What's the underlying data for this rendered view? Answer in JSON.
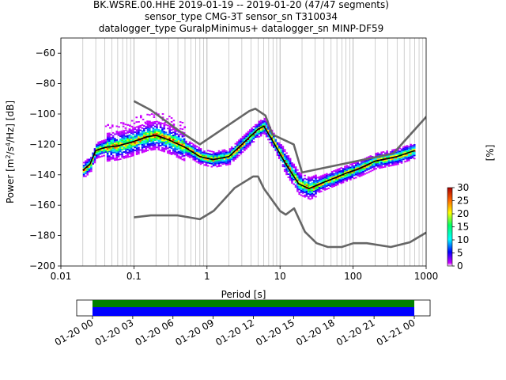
{
  "title_lines": [
    "BK.WSRE.00.HHE   2019-01-19 -- 2019-01-20  (47/47 segments)",
    "sensor_type CMG-3T sensor_sn T310034",
    "datalogger_type GuralpMinimus+ datalogger_sn MINP-DF59"
  ],
  "chart_data": {
    "type": "heatmap",
    "title": "BK.WSRE.00.HHE   2019-01-19 -- 2019-01-20  (47/47 segments)",
    "xlabel": "Period [s]",
    "ylabel": "Power [m$^2$/s$^4$/Hz] [dB]",
    "xscale": "log",
    "xlim": [
      0.01,
      1000
    ],
    "ylim": [
      -200,
      -50
    ],
    "x_ticks": [
      0.01,
      0.1,
      1,
      10,
      100,
      1000
    ],
    "x_tick_labels": [
      "0.01",
      "0.1",
      "1",
      "10",
      "100",
      "1000"
    ],
    "y_ticks": [
      -200,
      -180,
      -160,
      -140,
      -120,
      -100,
      -80,
      -60
    ],
    "y_tick_labels": [
      "−200",
      "−180",
      "−160",
      "−140",
      "−120",
      "−100",
      "−80",
      "−60"
    ],
    "grid": "x-minor",
    "colorbar": {
      "label": "[%]",
      "range": [
        0,
        30
      ],
      "ticks": [
        0,
        5,
        10,
        15,
        20,
        25,
        30
      ]
    },
    "series": [
      {
        "role": "mode",
        "color": "#000000",
        "x": [
          0.02,
          0.025,
          0.03,
          0.04,
          0.06,
          0.1,
          0.15,
          0.2,
          0.3,
          0.5,
          0.8,
          1.2,
          2,
          3,
          5,
          6,
          8,
          12,
          18,
          25,
          35,
          50,
          80,
          120,
          200,
          400,
          700
        ],
        "y": [
          -137,
          -133,
          -124,
          -122,
          -121,
          -118,
          -115,
          -114,
          -117,
          -122,
          -128,
          -130,
          -128,
          -120,
          -110,
          -108,
          -118,
          -133,
          -146,
          -149,
          -146,
          -143,
          -139,
          -136,
          -131,
          -128,
          -124
        ]
      },
      {
        "role": "NHNM",
        "color": "#666666",
        "x": [
          0.1,
          0.17,
          0.4,
          0.8,
          3.8,
          4.6,
          6.3,
          7.9,
          15.4,
          20,
          354.8,
          10000
        ],
        "y": [
          -91.5,
          -97.4,
          -110.5,
          -120,
          -98,
          -96.5,
          -101,
          -113.5,
          -120,
          -138.5,
          -126,
          -48.5
        ]
      },
      {
        "role": "NLNM",
        "color": "#666666",
        "x": [
          0.1,
          0.17,
          0.4,
          0.8,
          1.24,
          2.4,
          4.3,
          5,
          6,
          10,
          12,
          15.6,
          21.9,
          31.6,
          45,
          70,
          101,
          154,
          328,
          600,
          1000
        ],
        "y": [
          -168,
          -166.7,
          -166.7,
          -169.2,
          -163.7,
          -148.6,
          -141.1,
          -141.1,
          -149,
          -163.8,
          -166.2,
          -162.1,
          -177.5,
          -185,
          -187.5,
          -187.5,
          -185,
          -185,
          -187.5,
          -184.4,
          -178
        ]
      }
    ]
  },
  "coverage": {
    "xlim": [
      "2019-01-20 00:00",
      "2019-01-21 00:00"
    ],
    "data_span": [
      "2019-01-20 00:00",
      "2019-01-21 00:00"
    ],
    "bar_colors": {
      "data": "#0000ff",
      "psd": "#008000"
    },
    "tick_labels": [
      "01-20 00",
      "01-20 03",
      "01-20 06",
      "01-20 09",
      "01-20 12",
      "01-20 15",
      "01-20 18",
      "01-20 21",
      "01-21 00"
    ]
  }
}
